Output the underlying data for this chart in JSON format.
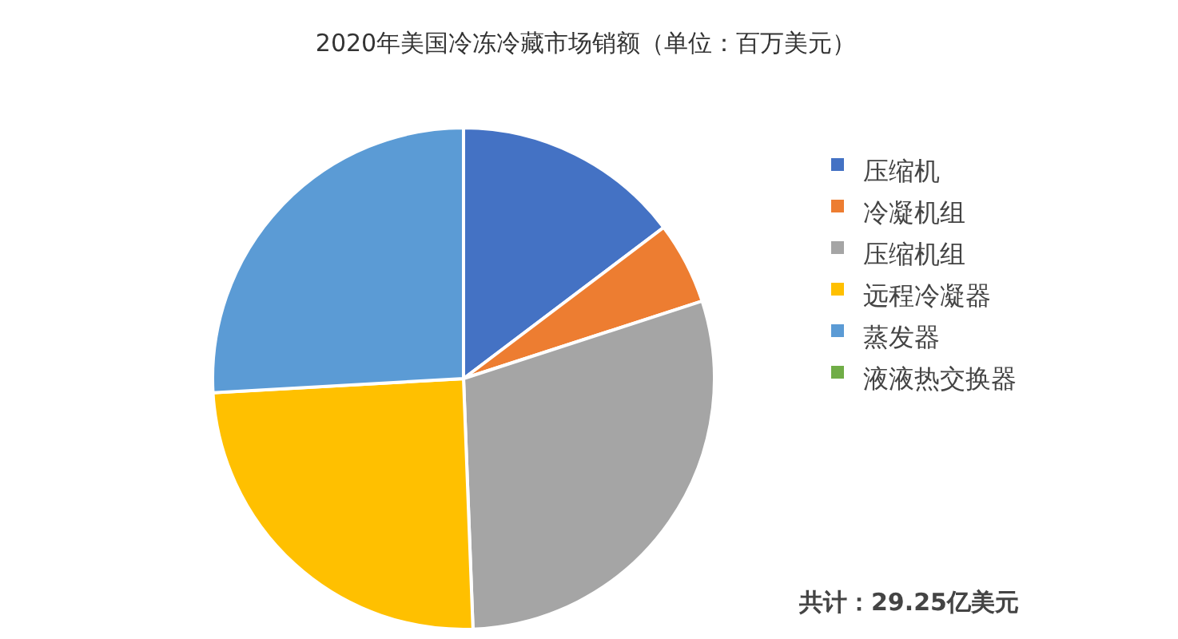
{
  "chart_data": {
    "type": "pie",
    "title": "2020年美国冷冻冷藏市场销额（单位：百万美元）",
    "categories": [
      "压缩机",
      "冷凝机组",
      "压缩机组",
      "远程冷凝器",
      "蒸发器",
      "液液热交换器"
    ],
    "values": [
      14.7,
      5.3,
      29.4,
      24.7,
      25.9,
      0
    ],
    "colors": [
      "#4472c4",
      "#ed7d31",
      "#a5a5a5",
      "#ffc000",
      "#5b9bd5",
      "#70ad47"
    ],
    "legend": "right",
    "annotations": [
      "共计：29.25亿美元"
    ]
  }
}
